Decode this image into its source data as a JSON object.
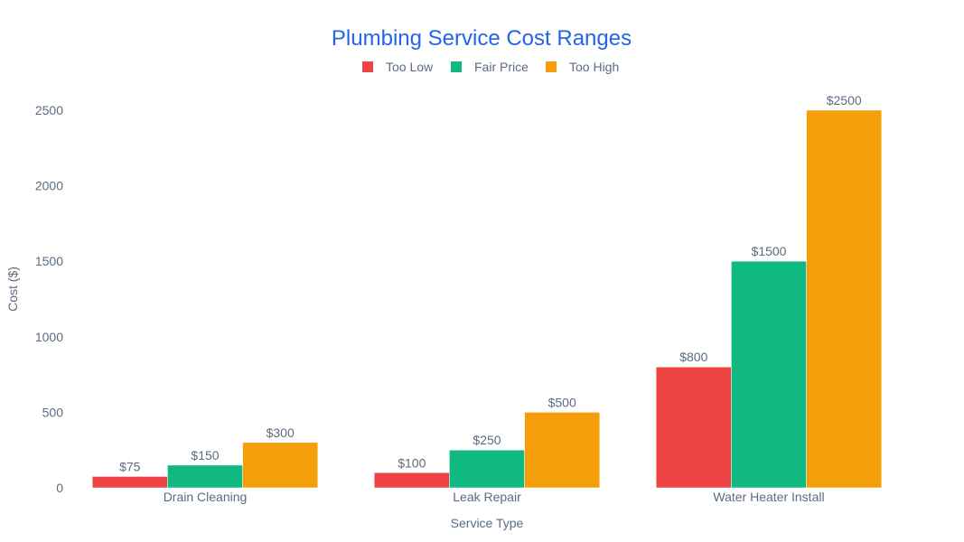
{
  "chart_data": {
    "type": "bar",
    "title": "Plumbing Service Cost Ranges",
    "xlabel": "Service Type",
    "ylabel": "Cost ($)",
    "categories": [
      "Drain Cleaning",
      "Leak Repair",
      "Water Heater Install"
    ],
    "series": [
      {
        "name": "Too Low",
        "values": [
          75,
          100,
          800
        ],
        "labels": [
          "$75",
          "$100",
          "$800"
        ],
        "color": "#ef4444"
      },
      {
        "name": "Fair Price",
        "values": [
          150,
          250,
          1500
        ],
        "labels": [
          "$150",
          "$250",
          "$1500"
        ],
        "color": "#10b981"
      },
      {
        "name": "Too High",
        "values": [
          300,
          500,
          2500
        ],
        "labels": [
          "$300",
          "$500",
          "$2500"
        ],
        "color": "#f59e0b"
      }
    ],
    "yticks": [
      0,
      500,
      1000,
      1500,
      2000,
      2500
    ],
    "ylim": [
      0,
      2500
    ],
    "grid": false,
    "legend": "top-center",
    "title_color": "#2563eb"
  }
}
